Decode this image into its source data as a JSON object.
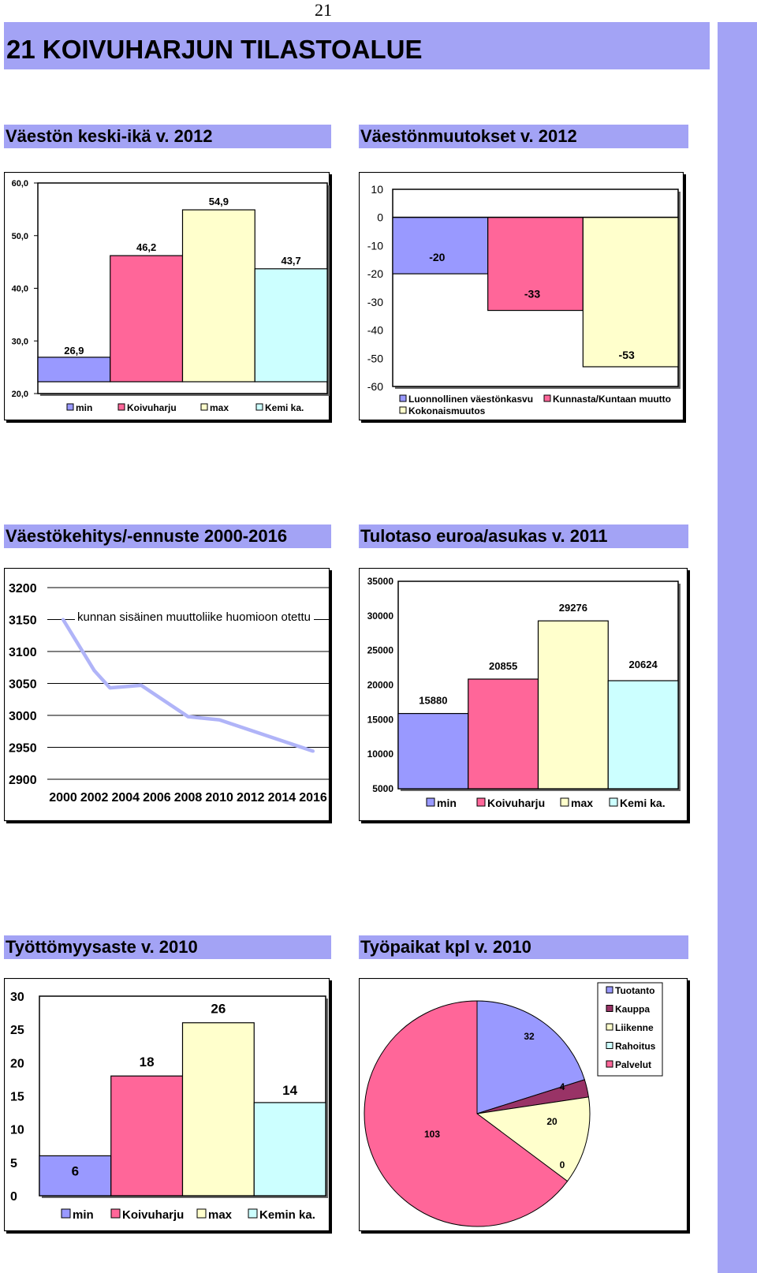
{
  "page_number": "21",
  "page_title": "21  KOIVUHARJUN TILASTOALUE",
  "sections": {
    "keski_ika": "Väestön keski-ikä v. 2012",
    "muutokset": "Väestönmuutokset v. 2012",
    "kehitys": "Väestökehitys/-ennuste 2000-2016",
    "tulotaso": "Tulotaso euroa/asukas v. 2011",
    "tyottomyys": "Työttömyysaste  v. 2010",
    "tyopaikat": "Työpaikat kpl  v. 2010"
  },
  "colors": {
    "band": "#a3a3f5",
    "min": "#9999ff",
    "area": "#ff6699",
    "max": "#ffffcc",
    "kemi": "#ccffff",
    "line": "#b0b4f8",
    "maroon": "#993366"
  },
  "chart_data": [
    {
      "id": "keski_ika",
      "type": "bar",
      "categories": [
        "min",
        "Koivuharju",
        "max",
        "Kemi ka."
      ],
      "values": [
        26.9,
        46.2,
        54.9,
        43.7
      ],
      "value_labels": [
        "26,9",
        "46,2",
        "54,9",
        "43,7"
      ],
      "ylim": [
        20,
        60
      ],
      "y_ticks": [
        20,
        30,
        40,
        50,
        60
      ],
      "y_tick_labels": [
        "20,0",
        "30,0",
        "40,0",
        "50,0",
        "60,0"
      ],
      "legend": [
        "min",
        "Koivuharju",
        "max",
        "Kemi ka."
      ],
      "legend_position": "bottom",
      "grid": false
    },
    {
      "id": "muutokset",
      "type": "bar",
      "categories": [
        "Luonnollinen väestönkasvu",
        "Kunnasta/Kuntaan muutto",
        "Kokonaismuutos"
      ],
      "values": [
        -20,
        -33,
        -53
      ],
      "value_labels": [
        "-20",
        "-33",
        "-53"
      ],
      "ylim": [
        -60,
        10
      ],
      "y_ticks": [
        10,
        0,
        -10,
        -20,
        -30,
        -40,
        -50,
        -60
      ],
      "y_tick_labels": [
        "10",
        "0",
        "-10",
        "-20",
        "-30",
        "-40",
        "-50",
        "-60"
      ],
      "legend": [
        "Luonnollinen väestönkasvu",
        "Kunnasta/Kuntaan muutto",
        "Kokonaismuutos"
      ],
      "legend_position": "bottom",
      "grid": false
    },
    {
      "id": "kehitys",
      "type": "line",
      "x": [
        2000,
        2002,
        2003,
        2005,
        2008,
        2010,
        2016
      ],
      "y": [
        3150,
        3070,
        3043,
        3047,
        2998,
        2993,
        2944
      ],
      "ylim": [
        2900,
        3200
      ],
      "y_ticks": [
        2900,
        2950,
        3000,
        3050,
        3100,
        3150,
        3200
      ],
      "x_ticks": [
        2000,
        2002,
        2004,
        2006,
        2008,
        2010,
        2012,
        2014,
        2016
      ],
      "annotation": "kunnan sisäinen muuttoliike huomioon otettu",
      "grid": true
    },
    {
      "id": "tulotaso",
      "type": "bar",
      "categories": [
        "min",
        "Koivuharju",
        "max",
        "Kemi ka."
      ],
      "values": [
        15880,
        20855,
        29276,
        20624
      ],
      "value_labels": [
        "15880",
        "20855",
        "29276",
        "20624"
      ],
      "ylim": [
        5000,
        35000
      ],
      "y_ticks": [
        5000,
        10000,
        15000,
        20000,
        25000,
        30000,
        35000
      ],
      "legend": [
        "min",
        "Koivuharju",
        "max",
        "Kemi ka."
      ],
      "legend_position": "bottom",
      "grid": false
    },
    {
      "id": "tyottomyys",
      "type": "bar",
      "categories": [
        "min",
        "Koivuharju",
        "max",
        "Kemin ka."
      ],
      "values": [
        6,
        18,
        26,
        14
      ],
      "value_labels": [
        "6",
        "18",
        "26",
        "14"
      ],
      "ylim": [
        0,
        30
      ],
      "y_ticks": [
        0,
        5,
        10,
        15,
        20,
        25,
        30
      ],
      "legend": [
        "min",
        "Koivuharju",
        "max",
        "Kemin ka."
      ],
      "legend_position": "bottom",
      "grid": false
    },
    {
      "id": "tyopaikat",
      "type": "pie",
      "labels": [
        "Tuotanto",
        "Kauppa",
        "Liikenne",
        "Rahoitus",
        "Palvelut"
      ],
      "values": [
        32,
        4,
        20,
        0,
        103
      ],
      "value_labels": [
        "32",
        "4",
        "20",
        "0",
        "103"
      ],
      "legend": [
        "Tuotanto",
        "Kauppa",
        "Liikenne",
        "Rahoitus",
        "Palvelut"
      ],
      "legend_position": "top-right"
    }
  ]
}
